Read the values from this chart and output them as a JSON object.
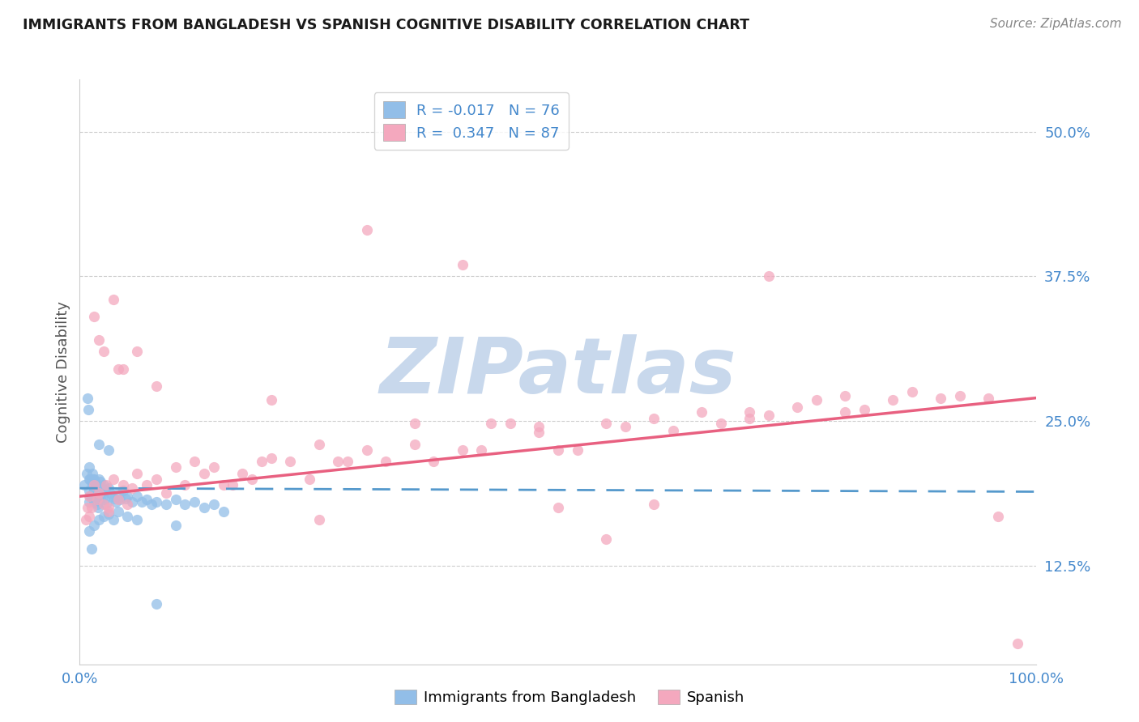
{
  "title": "IMMIGRANTS FROM BANGLADESH VS SPANISH COGNITIVE DISABILITY CORRELATION CHART",
  "source": "Source: ZipAtlas.com",
  "ylabel": "Cognitive Disability",
  "ytick_labels": [
    "12.5%",
    "25.0%",
    "37.5%",
    "50.0%"
  ],
  "ytick_values": [
    0.125,
    0.25,
    0.375,
    0.5
  ],
  "xlim": [
    0.0,
    1.0
  ],
  "ylim": [
    0.04,
    0.545
  ],
  "legend_blue_r": "-0.017",
  "legend_blue_n": "76",
  "legend_pink_r": "0.347",
  "legend_pink_n": "87",
  "blue_color": "#92BEE8",
  "pink_color": "#F4A8BE",
  "blue_line_color": "#5599CC",
  "pink_line_color": "#E86080",
  "title_color": "#1a1a1a",
  "axis_label_color": "#4488CC",
  "watermark_color": "#C8D8EC",
  "background_color": "#FFFFFF",
  "blue_scatter_x": [
    0.005,
    0.007,
    0.008,
    0.009,
    0.01,
    0.01,
    0.01,
    0.01,
    0.011,
    0.011,
    0.012,
    0.012,
    0.013,
    0.013,
    0.013,
    0.014,
    0.014,
    0.015,
    0.015,
    0.015,
    0.016,
    0.016,
    0.017,
    0.017,
    0.018,
    0.018,
    0.019,
    0.019,
    0.02,
    0.02,
    0.021,
    0.022,
    0.022,
    0.023,
    0.024,
    0.025,
    0.026,
    0.027,
    0.028,
    0.03,
    0.032,
    0.034,
    0.036,
    0.038,
    0.04,
    0.042,
    0.045,
    0.048,
    0.05,
    0.055,
    0.06,
    0.065,
    0.07,
    0.075,
    0.08,
    0.09,
    0.1,
    0.11,
    0.12,
    0.13,
    0.14,
    0.15,
    0.01,
    0.012,
    0.015,
    0.02,
    0.025,
    0.03,
    0.035,
    0.04,
    0.05,
    0.06,
    0.08,
    0.1,
    0.02,
    0.03
  ],
  "blue_scatter_y": [
    0.195,
    0.205,
    0.27,
    0.26,
    0.21,
    0.2,
    0.19,
    0.18,
    0.2,
    0.185,
    0.2,
    0.185,
    0.205,
    0.195,
    0.185,
    0.2,
    0.188,
    0.2,
    0.19,
    0.18,
    0.198,
    0.183,
    0.195,
    0.18,
    0.193,
    0.178,
    0.19,
    0.175,
    0.2,
    0.185,
    0.19,
    0.198,
    0.183,
    0.192,
    0.185,
    0.195,
    0.182,
    0.19,
    0.178,
    0.192,
    0.188,
    0.185,
    0.183,
    0.18,
    0.188,
    0.182,
    0.19,
    0.183,
    0.185,
    0.18,
    0.185,
    0.18,
    0.182,
    0.178,
    0.18,
    0.178,
    0.182,
    0.178,
    0.18,
    0.175,
    0.178,
    0.172,
    0.155,
    0.14,
    0.16,
    0.165,
    0.168,
    0.17,
    0.165,
    0.172,
    0.168,
    0.165,
    0.092,
    0.16,
    0.23,
    0.225
  ],
  "pink_scatter_x": [
    0.006,
    0.008,
    0.01,
    0.012,
    0.015,
    0.018,
    0.02,
    0.025,
    0.028,
    0.03,
    0.035,
    0.04,
    0.045,
    0.05,
    0.055,
    0.06,
    0.07,
    0.08,
    0.09,
    0.1,
    0.11,
    0.12,
    0.13,
    0.14,
    0.15,
    0.16,
    0.17,
    0.18,
    0.19,
    0.2,
    0.22,
    0.24,
    0.25,
    0.27,
    0.28,
    0.3,
    0.32,
    0.35,
    0.37,
    0.4,
    0.42,
    0.45,
    0.48,
    0.5,
    0.52,
    0.55,
    0.57,
    0.6,
    0.62,
    0.65,
    0.67,
    0.7,
    0.72,
    0.75,
    0.77,
    0.8,
    0.82,
    0.85,
    0.87,
    0.9,
    0.92,
    0.95,
    0.02,
    0.04,
    0.06,
    0.08,
    0.035,
    0.015,
    0.025,
    0.045,
    0.2,
    0.35,
    0.43,
    0.48,
    0.7,
    0.8,
    0.01,
    0.03,
    0.5,
    0.6,
    0.72,
    0.4,
    0.3,
    0.25,
    0.98,
    0.96,
    0.55
  ],
  "pink_scatter_y": [
    0.165,
    0.175,
    0.185,
    0.175,
    0.195,
    0.182,
    0.188,
    0.178,
    0.195,
    0.175,
    0.2,
    0.182,
    0.195,
    0.178,
    0.192,
    0.205,
    0.195,
    0.2,
    0.188,
    0.21,
    0.195,
    0.215,
    0.205,
    0.21,
    0.195,
    0.195,
    0.205,
    0.2,
    0.215,
    0.218,
    0.215,
    0.2,
    0.23,
    0.215,
    0.215,
    0.225,
    0.215,
    0.23,
    0.215,
    0.225,
    0.225,
    0.248,
    0.24,
    0.225,
    0.225,
    0.248,
    0.245,
    0.252,
    0.242,
    0.258,
    0.248,
    0.258,
    0.255,
    0.262,
    0.268,
    0.272,
    0.26,
    0.268,
    0.275,
    0.27,
    0.272,
    0.27,
    0.32,
    0.295,
    0.31,
    0.28,
    0.355,
    0.34,
    0.31,
    0.295,
    0.268,
    0.248,
    0.248,
    0.245,
    0.252,
    0.258,
    0.168,
    0.172,
    0.175,
    0.178,
    0.375,
    0.385,
    0.415,
    0.165,
    0.058,
    0.168,
    0.148
  ]
}
